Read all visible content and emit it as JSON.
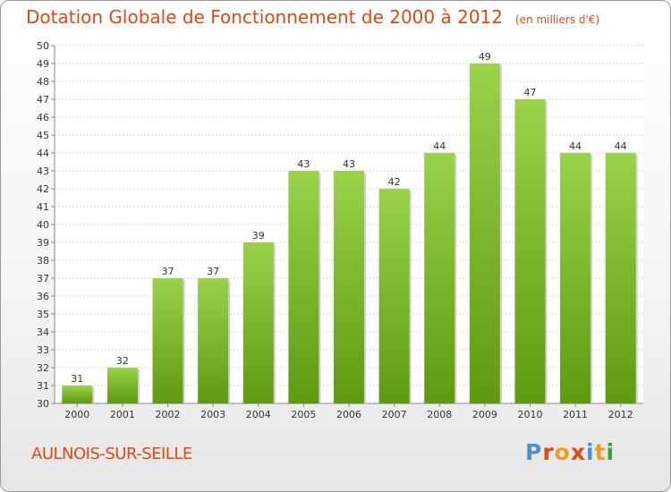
{
  "header": {
    "title": "Dotation Globale de Fonctionnement de 2000 à 2012",
    "subtitle": "(en milliers d'€)"
  },
  "footer": {
    "commune": "AULNOIS-SUR-SEILLE",
    "logo_text": "Proxiti",
    "logo_colors": [
      "#4a90d9",
      "#e04a10",
      "#e8a020",
      "#e04a10",
      "#4a90d9",
      "#e8a020",
      "#3aa040"
    ]
  },
  "colors": {
    "bar_light": "#9ad24a",
    "bar_dark": "#5e9a10",
    "grid": "#d8d8d8",
    "axis_text": "#333333",
    "accent": "#e04a10"
  },
  "chart_data": {
    "type": "bar",
    "categories": [
      "2000",
      "2001",
      "2002",
      "2003",
      "2004",
      "2005",
      "2006",
      "2007",
      "2008",
      "2009",
      "2010",
      "2011",
      "2012"
    ],
    "values": [
      31,
      32,
      37,
      37,
      39,
      43,
      43,
      42,
      44,
      49,
      47,
      44,
      44
    ],
    "ylim": [
      30,
      50
    ],
    "yticks": [
      30,
      31,
      32,
      33,
      34,
      35,
      36,
      37,
      38,
      39,
      40,
      41,
      42,
      43,
      44,
      45,
      46,
      47,
      48,
      49,
      50
    ],
    "grid": true,
    "legend": "none"
  }
}
